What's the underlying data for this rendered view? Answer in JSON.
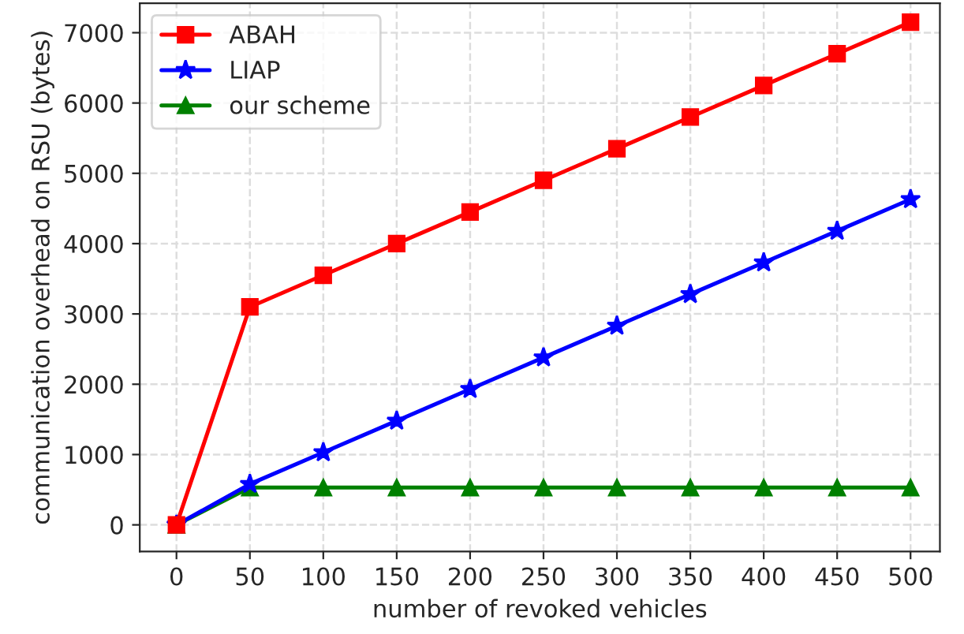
{
  "chart_data": {
    "type": "line",
    "xlabel": "number of revoked vehicles",
    "ylabel": "communication overhead on RSU (bytes)",
    "x": [
      0,
      50,
      100,
      150,
      200,
      250,
      300,
      350,
      400,
      450,
      500
    ],
    "series": [
      {
        "name": "ABAH",
        "color": "#ff0000",
        "marker": "square",
        "values": [
          0,
          3100,
          3550,
          4000,
          4450,
          4900,
          5350,
          5800,
          6250,
          6700,
          7150
        ]
      },
      {
        "name": "LIAP",
        "color": "#0000ff",
        "marker": "star",
        "values": [
          0,
          580,
          1030,
          1480,
          1930,
          2380,
          2830,
          3280,
          3730,
          4180,
          4630
        ]
      },
      {
        "name": "our scheme",
        "color": "#008000",
        "marker": "triangle",
        "values": [
          0,
          530,
          530,
          530,
          530,
          530,
          530,
          530,
          530,
          530,
          530
        ]
      }
    ],
    "xlim": [
      -25,
      520
    ],
    "xticks": [
      0,
      50,
      100,
      150,
      200,
      250,
      300,
      350,
      400,
      450,
      500
    ],
    "ylim": [
      -380,
      7420
    ],
    "yticks": [
      0,
      1000,
      2000,
      3000,
      4000,
      5000,
      6000,
      7000
    ],
    "grid": true,
    "legend": "top left",
    "line_style": "solid"
  }
}
